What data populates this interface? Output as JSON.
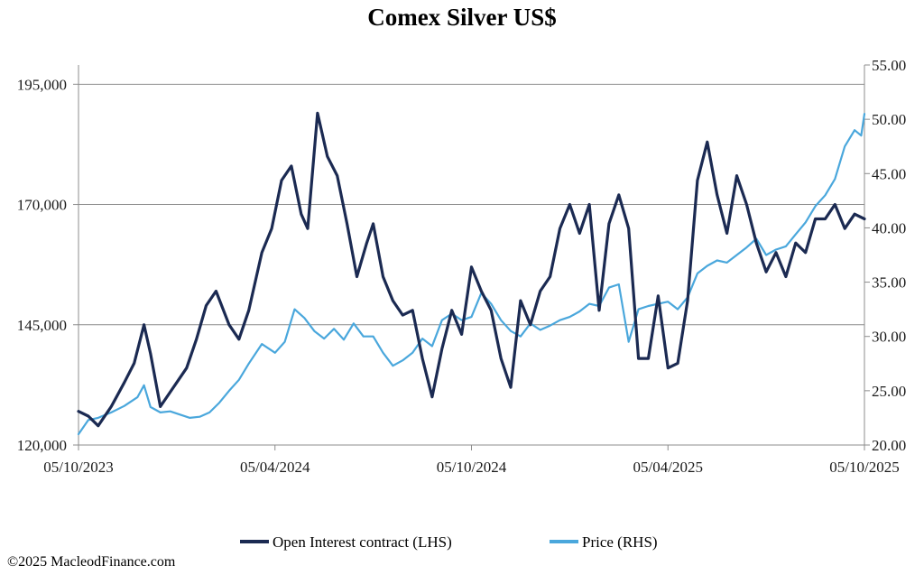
{
  "chart_data": {
    "type": "line",
    "title": "Comex Silver US$",
    "x_tick_labels": [
      "05/10/2023",
      "05/04/2024",
      "05/10/2024",
      "05/04/2025",
      "05/10/2025"
    ],
    "left_axis": {
      "ticks": [
        120000,
        145000,
        170000,
        195000
      ],
      "tick_labels": [
        "120,000",
        "145,000",
        "170,000",
        "195,000"
      ],
      "ylim": [
        120000,
        199000
      ]
    },
    "right_axis": {
      "ticks": [
        20,
        25,
        30,
        35,
        40,
        45,
        50,
        55
      ],
      "tick_labels": [
        "20.00",
        "25.00",
        "30.00",
        "35.00",
        "40.00",
        "45.00",
        "50.00",
        "55.00"
      ],
      "ylim": [
        20,
        55
      ]
    },
    "grid": "horizontal at left-axis ticks",
    "legend_position": "bottom-center",
    "x_range": [
      0,
      24
    ],
    "series": [
      {
        "name": "Open Interest contract (LHS)",
        "axis": "left",
        "color": "#1b2a52",
        "x": [
          0,
          0.3,
          0.6,
          1.0,
          1.4,
          1.7,
          2.0,
          2.2,
          2.5,
          2.8,
          3.0,
          3.3,
          3.6,
          3.9,
          4.2,
          4.6,
          4.9,
          5.2,
          5.6,
          5.9,
          6.2,
          6.5,
          6.8,
          7.0,
          7.3,
          7.6,
          7.9,
          8.2,
          8.5,
          8.8,
          9.0,
          9.3,
          9.6,
          9.9,
          10.2,
          10.5,
          10.8,
          11.1,
          11.4,
          11.7,
          12.0,
          12.3,
          12.6,
          12.9,
          13.2,
          13.5,
          13.8,
          14.1,
          14.4,
          14.7,
          15.0,
          15.3,
          15.6,
          15.9,
          16.2,
          16.5,
          16.8,
          17.1,
          17.4,
          17.7,
          18.0,
          18.3,
          18.6,
          18.9,
          19.2,
          19.5,
          19.8,
          20.1,
          20.4,
          20.7,
          21.0,
          21.3,
          21.6,
          21.9,
          22.2,
          22.5,
          22.8,
          23.1,
          23.4,
          23.7,
          24.0
        ],
        "values": [
          127000,
          126000,
          124000,
          128000,
          133000,
          137000,
          145000,
          139000,
          128000,
          131000,
          133000,
          136000,
          142000,
          149000,
          152000,
          145000,
          142000,
          148000,
          160000,
          165000,
          175000,
          178000,
          168000,
          165000,
          189000,
          180000,
          176000,
          166000,
          155000,
          162000,
          166000,
          155000,
          150000,
          147000,
          148000,
          138000,
          130000,
          140000,
          148000,
          143000,
          157000,
          152000,
          148000,
          138000,
          132000,
          150000,
          145000,
          152000,
          155000,
          165000,
          170000,
          164000,
          170000,
          148000,
          166000,
          172000,
          165000,
          138000,
          138000,
          151000,
          136000,
          137000,
          150000,
          175000,
          183000,
          172000,
          164000,
          176000,
          170000,
          162000,
          156000,
          160000,
          155000,
          162000,
          160000,
          167000,
          167000,
          170000,
          165000,
          168000,
          167000
        ]
      },
      {
        "name": "Price (RHS)",
        "axis": "right",
        "color": "#4aa7dc",
        "x": [
          0,
          0.3,
          0.6,
          1.0,
          1.4,
          1.8,
          2.0,
          2.2,
          2.5,
          2.8,
          3.1,
          3.4,
          3.7,
          4.0,
          4.3,
          4.6,
          4.9,
          5.2,
          5.6,
          6.0,
          6.3,
          6.6,
          6.9,
          7.2,
          7.5,
          7.8,
          8.1,
          8.4,
          8.7,
          9.0,
          9.3,
          9.6,
          9.9,
          10.2,
          10.5,
          10.8,
          11.1,
          11.4,
          11.7,
          12.0,
          12.3,
          12.6,
          12.9,
          13.2,
          13.5,
          13.8,
          14.1,
          14.4,
          14.7,
          15.0,
          15.3,
          15.6,
          15.9,
          16.2,
          16.5,
          16.8,
          17.1,
          17.4,
          17.7,
          18.0,
          18.3,
          18.6,
          18.9,
          19.2,
          19.5,
          19.8,
          20.1,
          20.4,
          20.7,
          21.0,
          21.3,
          21.6,
          21.9,
          22.2,
          22.5,
          22.8,
          23.1,
          23.4,
          23.7,
          23.9,
          24.0
        ],
        "values": [
          21.0,
          22.3,
          22.5,
          23.0,
          23.6,
          24.4,
          25.5,
          23.5,
          23.0,
          23.1,
          22.8,
          22.5,
          22.6,
          23.0,
          23.9,
          25.0,
          26.0,
          27.5,
          29.3,
          28.5,
          29.5,
          32.5,
          31.7,
          30.5,
          29.8,
          30.7,
          29.7,
          31.2,
          30.0,
          30.0,
          28.5,
          27.3,
          27.8,
          28.5,
          29.8,
          29.1,
          31.5,
          32.1,
          31.5,
          31.8,
          34.0,
          33.0,
          31.5,
          30.5,
          30.0,
          31.2,
          30.6,
          31.0,
          31.5,
          31.8,
          32.3,
          33.0,
          32.8,
          34.5,
          34.8,
          29.5,
          32.5,
          32.8,
          33.0,
          33.2,
          32.5,
          33.6,
          35.8,
          36.5,
          37.0,
          36.8,
          37.5,
          38.2,
          39.0,
          37.5,
          38.0,
          38.3,
          39.4,
          40.5,
          42.0,
          43.0,
          44.5,
          47.5,
          49.0,
          48.5,
          50.5
        ]
      }
    ]
  },
  "copyright": "©2025 MacleodFinance.com"
}
